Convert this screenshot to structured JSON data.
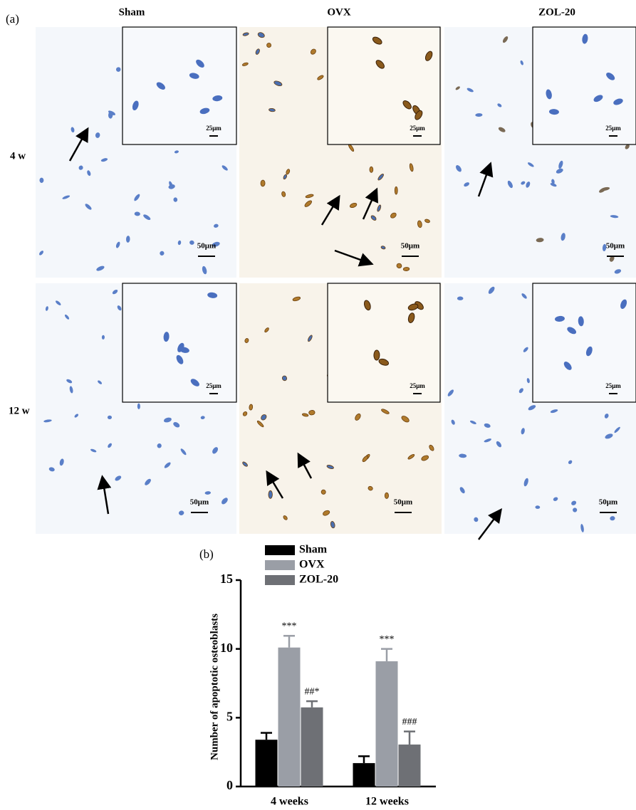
{
  "panel_a": {
    "label": "(a)",
    "columns": [
      "Sham",
      "OVX",
      "ZOL-20"
    ],
    "rows": [
      "4 w",
      "12 w"
    ],
    "scale_bar": "50μm",
    "inset_scale_bar": "25μm"
  },
  "chart_data": {
    "type": "bar",
    "panel_label": "(b)",
    "ylabel": "Number of apoptotic osteoblasts",
    "categories": [
      "4 weeks",
      "12 weeks"
    ],
    "series": [
      {
        "name": "Sham",
        "color": "#000000",
        "values": [
          3.4,
          1.7
        ],
        "errors": [
          0.5,
          0.5
        ]
      },
      {
        "name": "OVX",
        "color": "#9a9ea6",
        "values": [
          10.1,
          9.1
        ],
        "errors": [
          0.85,
          0.9
        ],
        "significance": [
          "***",
          "***"
        ]
      },
      {
        "name": "ZOL-20",
        "color": "#6e7075",
        "values": [
          5.75,
          3.05
        ],
        "errors": [
          0.45,
          0.95
        ],
        "significance": [
          "##*",
          "###"
        ]
      }
    ],
    "ylim": [
      0,
      15
    ],
    "yticks": [
      0,
      5,
      10,
      15
    ],
    "legend": "top-left"
  }
}
